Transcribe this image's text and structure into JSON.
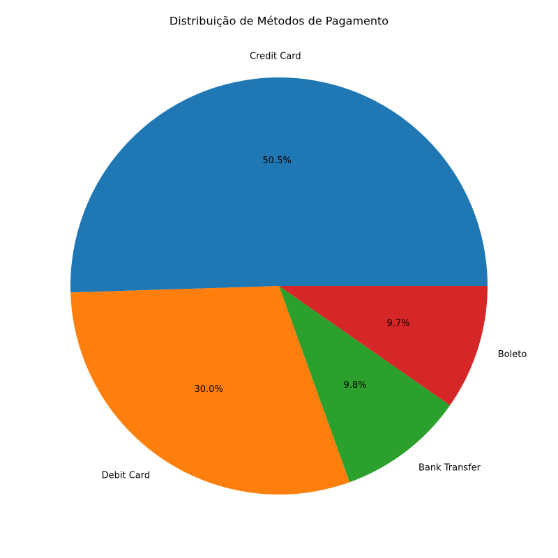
{
  "chart_data": {
    "type": "pie",
    "title": "Distribuição de Métodos de Pagamento",
    "categories": [
      "Credit Card",
      "Debit Card",
      "Bank Transfer",
      "Boleto"
    ],
    "values": [
      50.5,
      30.0,
      9.8,
      9.7
    ],
    "value_labels": [
      "50.5%",
      "30.0%",
      "9.8%",
      "9.7%"
    ],
    "colors": [
      "#1f77b4",
      "#ff7f0e",
      "#2ca02c",
      "#d62728"
    ],
    "start_angle_deg": 0,
    "direction": "counterclockwise",
    "legend": "none"
  }
}
